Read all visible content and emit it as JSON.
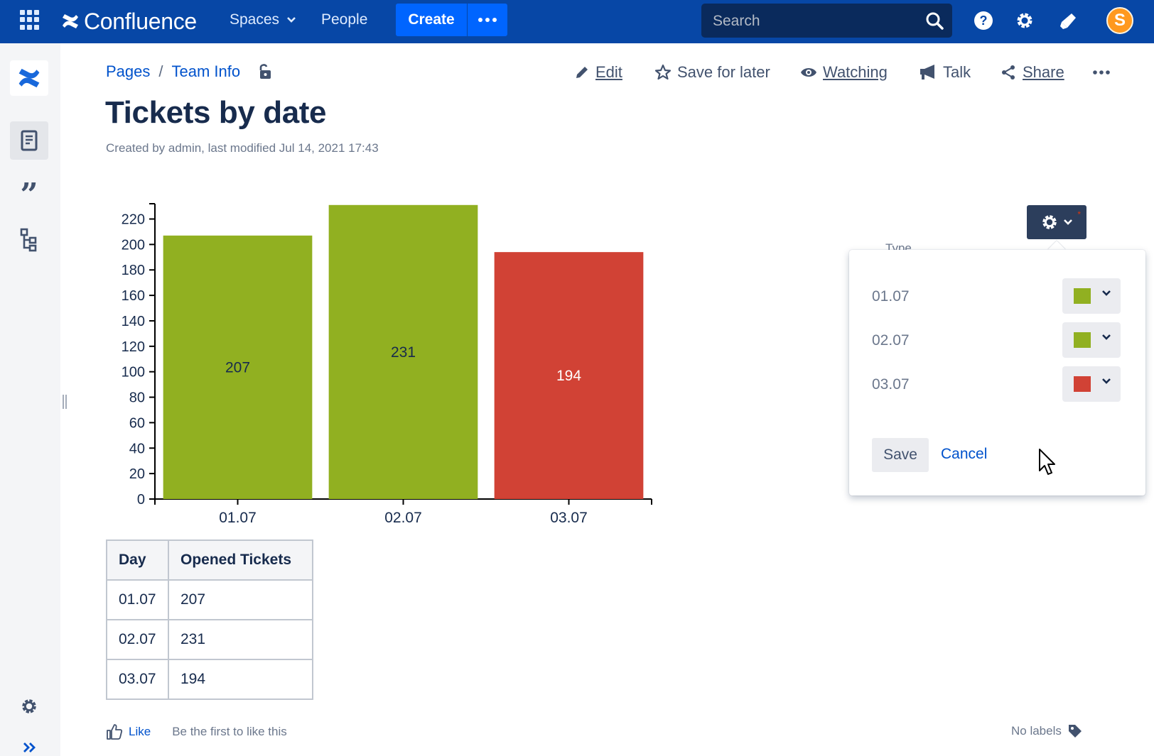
{
  "topnav": {
    "app_name": "Confluence",
    "spaces_label": "Spaces",
    "people_label": "People",
    "create_label": "Create",
    "search_placeholder": "Search",
    "avatar_initial": "S"
  },
  "breadcrumb": {
    "items": [
      "Pages",
      "Team Info"
    ],
    "separator": "/"
  },
  "page_actions": {
    "edit": "Edit",
    "save_for_later": "Save for later",
    "watching": "Watching",
    "talk": "Talk",
    "share": "Share"
  },
  "page": {
    "title": "Tickets by date",
    "byline": "Created by admin, last modified Jul 14, 2021 17:43"
  },
  "chart_data": {
    "type": "bar",
    "categories": [
      "01.07",
      "02.07",
      "03.07"
    ],
    "values": [
      207,
      231,
      194
    ],
    "colors": [
      "#91b021",
      "#91b021",
      "#d14235"
    ],
    "label_colors": [
      "#172b4d",
      "#172b4d",
      "#ffffff"
    ],
    "yticks": [
      0,
      20,
      40,
      60,
      80,
      100,
      120,
      140,
      160,
      180,
      200,
      220
    ],
    "ylim": [
      0,
      232
    ],
    "title": "",
    "xlabel": "",
    "ylabel": "",
    "grid": false
  },
  "table": {
    "headers": [
      "Day",
      "Opened Tickets"
    ],
    "rows": [
      [
        "01.07",
        "207"
      ],
      [
        "02.07",
        "231"
      ],
      [
        "03.07",
        "194"
      ]
    ]
  },
  "footer": {
    "like_label": "Like",
    "like_text": "Be the first to like this",
    "labels_text": "No labels"
  },
  "chart_settings": {
    "type_label": "Type",
    "rows": [
      {
        "label": "01.07",
        "color": "#91b021"
      },
      {
        "label": "02.07",
        "color": "#91b021"
      },
      {
        "label": "03.07",
        "color": "#d14235"
      }
    ],
    "save_label": "Save",
    "cancel_label": "Cancel"
  }
}
